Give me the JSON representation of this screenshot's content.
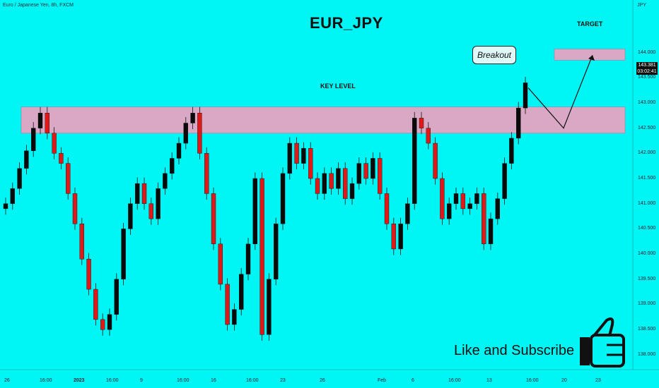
{
  "header": {
    "symbol_line": "Euro / Japanese Yen, 8h, FXCM",
    "currency": "JPY"
  },
  "title": "EUR_JPY",
  "annotations": {
    "key_level": "KEY LEVEL",
    "target": "TARGET",
    "breakout": "Breakout",
    "cta": "Like and Subscribe"
  },
  "price_label": {
    "price": "143.381",
    "timer": "03:02:41"
  },
  "colors": {
    "background": "#00f5f5",
    "up": "#0a0a0a",
    "down": "#e01818",
    "zone": "#d9a8c4"
  },
  "icons": {
    "cta": "thumbs-up-icon"
  },
  "chart_data": {
    "type": "candlestick",
    "title": "EUR_JPY",
    "ylim": [
      137.9,
      144.4
    ],
    "y_ticks": [
      "144.000",
      "143.500",
      "143.000",
      "142.500",
      "142.000",
      "141.500",
      "141.000",
      "140.500",
      "140.000",
      "139.500",
      "139.000",
      "138.500",
      "138.000"
    ],
    "x_ticks": [
      "26",
      "16:00",
      "2023",
      "16:00",
      "9",
      "16:00",
      "16",
      "16:00",
      "23",
      "26",
      "Feb",
      "6",
      "16:00",
      "13",
      "16:00",
      "20",
      "23"
    ],
    "zones": [
      {
        "label": "KEY LEVEL",
        "low": 142.4,
        "high": 142.92
      },
      {
        "label": "TARGET",
        "low": 143.85,
        "high": 144.07
      }
    ],
    "projection": [
      {
        "t": "now",
        "price": 143.3
      },
      {
        "t": "+1",
        "price": 142.5
      },
      {
        "t": "+2",
        "price": 143.95
      }
    ],
    "close": [
      141.0,
      141.3,
      141.7,
      142.05,
      142.5,
      142.8,
      142.4,
      142.0,
      141.8,
      141.2,
      140.6,
      139.9,
      139.3,
      138.7,
      138.5,
      138.8,
      139.5,
      140.5,
      141.0,
      141.4,
      141.0,
      140.7,
      141.3,
      141.6,
      141.9,
      142.2,
      142.6,
      142.8,
      142.0,
      141.2,
      140.2,
      139.4,
      138.6,
      138.9,
      139.6,
      140.2,
      141.5,
      138.4,
      139.5,
      140.6,
      141.6,
      142.2,
      141.8,
      142.1,
      141.5,
      141.2,
      141.6,
      141.3,
      141.7,
      141.1,
      141.4,
      141.8,
      141.5,
      141.9,
      141.2,
      140.6,
      140.1,
      140.6,
      141.0,
      142.7,
      142.5,
      142.2,
      141.5,
      140.7,
      141.0,
      141.2,
      140.9,
      141.0,
      141.2,
      140.2,
      140.7,
      141.1,
      141.8,
      142.3,
      142.9,
      143.4
    ]
  }
}
